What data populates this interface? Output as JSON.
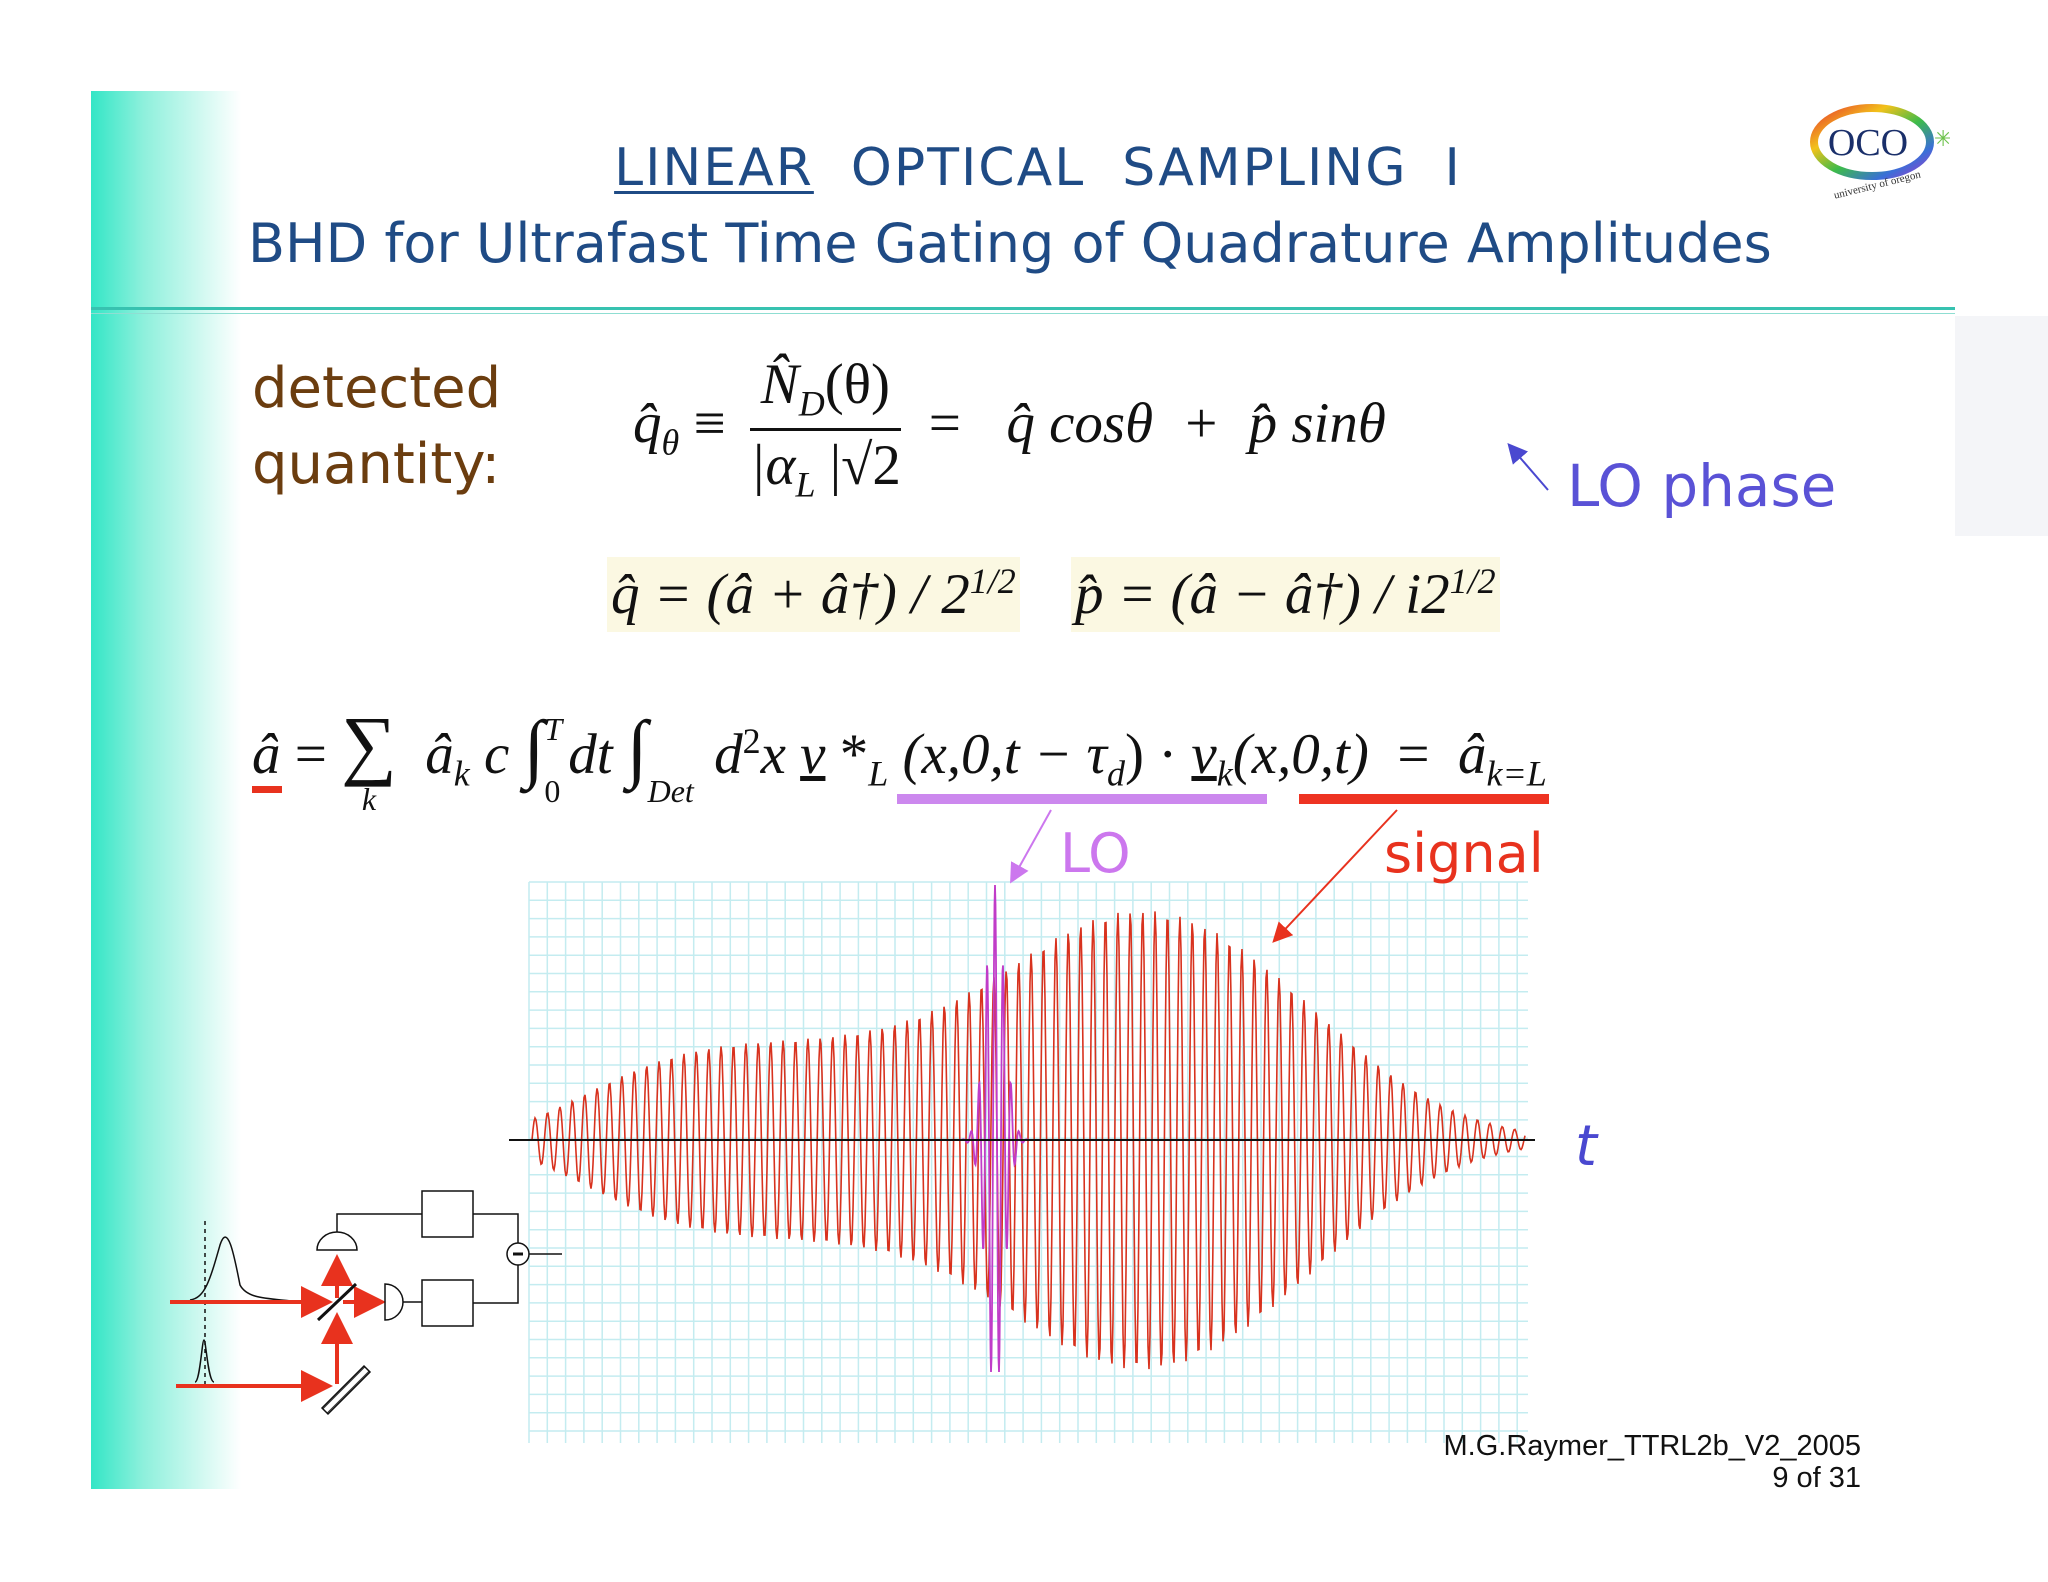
{
  "header": {
    "title_underlined": "LINEAR",
    "title_rest": "OPTICAL  SAMPLING  I",
    "subtitle": "BHD for Ultrafast Time Gating of Quadrature Amplitudes",
    "logo": "OCO",
    "logo_caption": "university of oregon"
  },
  "quadrature": {
    "label": [
      "detected",
      "quantity:"
    ],
    "lhs": "q̂",
    "lhs_sub": "θ",
    "equiv": "≡",
    "num": "N̂",
    "num_sub": "D",
    "num_arg": "(θ)",
    "den": "|α",
    "den_sub": "L",
    "den_rest": " |√2",
    "rhs": "=   q̂ cosθ  +  p̂ sinθ",
    "annotation": "LO phase"
  },
  "definitions": [
    {
      "text": "q̂ = (â + â†) / 2",
      "sup": "1/2"
    },
    {
      "text": "p̂ = (â − â†) / i2",
      "sup": "1/2"
    }
  ],
  "mode_equation": {
    "lhs": "â",
    "eq": " = ",
    "sum": "∑",
    "sum_index": "k",
    "coef": "â",
    "coef_sub": "k",
    "c": " c ",
    "int": "∫",
    "int_upper": "T",
    "int_lower": "0",
    "dt": "dt ",
    "int2": "∫",
    "int2_lower": "Det",
    "d": " d",
    "d_sup": "2",
    "x": "x ",
    "lo_v": "v",
    "lo_star": " *",
    "lo_sub": "L",
    "lo_args": " (x,0,t − τ",
    "lo_tau_sub": "d",
    "lo_close": ")",
    "dot": " · ",
    "sig_v": "v",
    "sig_sub": "k",
    "sig_args": "(x,0,t)",
    "eq2": "  =  ",
    "rhs": "â",
    "rhs_sub": "k=L"
  },
  "plot": {
    "lo_label": "LO",
    "signal_label": "signal",
    "axis_label": "t"
  },
  "footer": {
    "source": "M.G.Raymer_TTRL2b_V2_2005",
    "page": "9 of 31"
  }
}
